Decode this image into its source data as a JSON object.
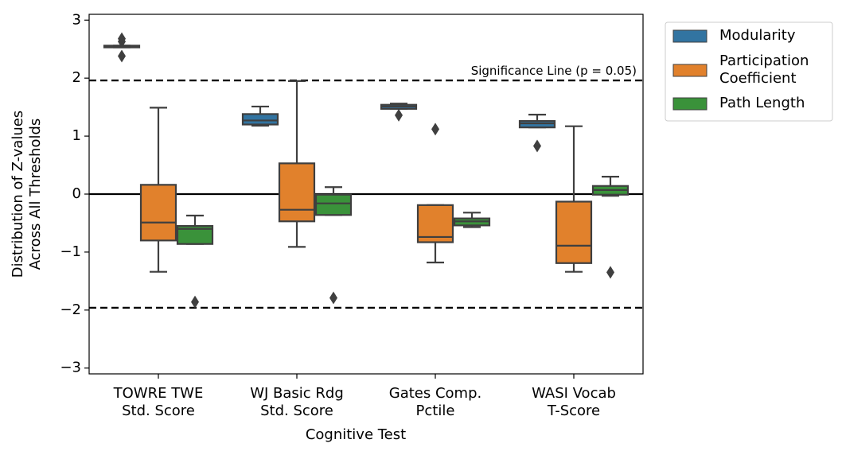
{
  "chart_data": {
    "type": "box",
    "x_label": "Cognitive Test",
    "y_label": "Distribution of Z-values\nAcross All Thresholds",
    "categories": [
      "TOWRE TWE\nStd. Score",
      "WJ Basic Rdg\nStd. Score",
      "Gates Comp.\nPctile",
      "WASI Vocab\nT-Score"
    ],
    "ylim": [
      -3.1,
      3.1
    ],
    "yticks": [
      {
        "value": -3,
        "label": "−3"
      },
      {
        "value": -2,
        "label": "−2"
      },
      {
        "value": -1,
        "label": "−1"
      },
      0,
      1,
      2,
      3
    ],
    "reference_lines": [
      {
        "value": 1.96,
        "style": "dashed"
      },
      {
        "value": -1.96,
        "style": "dashed"
      },
      {
        "value": 0,
        "style": "solid"
      }
    ],
    "annotation": "Significance Line (p = 0.05)",
    "legend_position": "outside right",
    "series": [
      {
        "name": "Modularity",
        "color": "#3274a1",
        "boxes": [
          {
            "whislo": 2.53,
            "q1": 2.53,
            "med": 2.55,
            "q3": 2.56,
            "whishi": 2.56,
            "fliers": [
              2.68,
              2.63,
              2.38
            ]
          },
          {
            "whislo": 1.18,
            "q1": 1.2,
            "med": 1.27,
            "q3": 1.38,
            "whishi": 1.51,
            "fliers": []
          },
          {
            "whislo": 1.47,
            "q1": 1.47,
            "med": 1.51,
            "q3": 1.54,
            "whishi": 1.56,
            "fliers": [
              1.36
            ]
          },
          {
            "whislo": 1.15,
            "q1": 1.15,
            "med": 1.22,
            "q3": 1.26,
            "whishi": 1.37,
            "fliers": [
              0.83
            ]
          }
        ]
      },
      {
        "name": "Participation\nCoefficient",
        "color": "#e1812c",
        "boxes": [
          {
            "whislo": -1.34,
            "q1": -0.8,
            "med": -0.49,
            "q3": 0.16,
            "whishi": 1.49,
            "fliers": []
          },
          {
            "whislo": -0.91,
            "q1": -0.47,
            "med": -0.27,
            "q3": 0.53,
            "whishi": 1.95,
            "fliers": []
          },
          {
            "whislo": -1.18,
            "q1": -0.83,
            "med": -0.74,
            "q3": -0.19,
            "whishi": -0.19,
            "fliers": [
              1.12
            ]
          },
          {
            "whislo": -1.34,
            "q1": -1.19,
            "med": -0.89,
            "q3": -0.13,
            "whishi": 1.17,
            "fliers": []
          }
        ]
      },
      {
        "name": "Path Length",
        "color": "#3a923a",
        "boxes": [
          {
            "whislo": -0.86,
            "q1": -0.86,
            "med": -0.6,
            "q3": -0.55,
            "whishi": -0.37,
            "fliers": [
              -1.86
            ]
          },
          {
            "whislo": -0.36,
            "q1": -0.36,
            "med": -0.16,
            "q3": -0.01,
            "whishi": 0.12,
            "fliers": [
              -1.79
            ]
          },
          {
            "whislo": -0.57,
            "q1": -0.54,
            "med": -0.47,
            "q3": -0.42,
            "whishi": -0.32,
            "fliers": []
          },
          {
            "whislo": -0.03,
            "q1": -0.01,
            "med": 0.07,
            "q3": 0.14,
            "whishi": 0.3,
            "fliers": [
              -1.35
            ]
          }
        ]
      }
    ]
  }
}
